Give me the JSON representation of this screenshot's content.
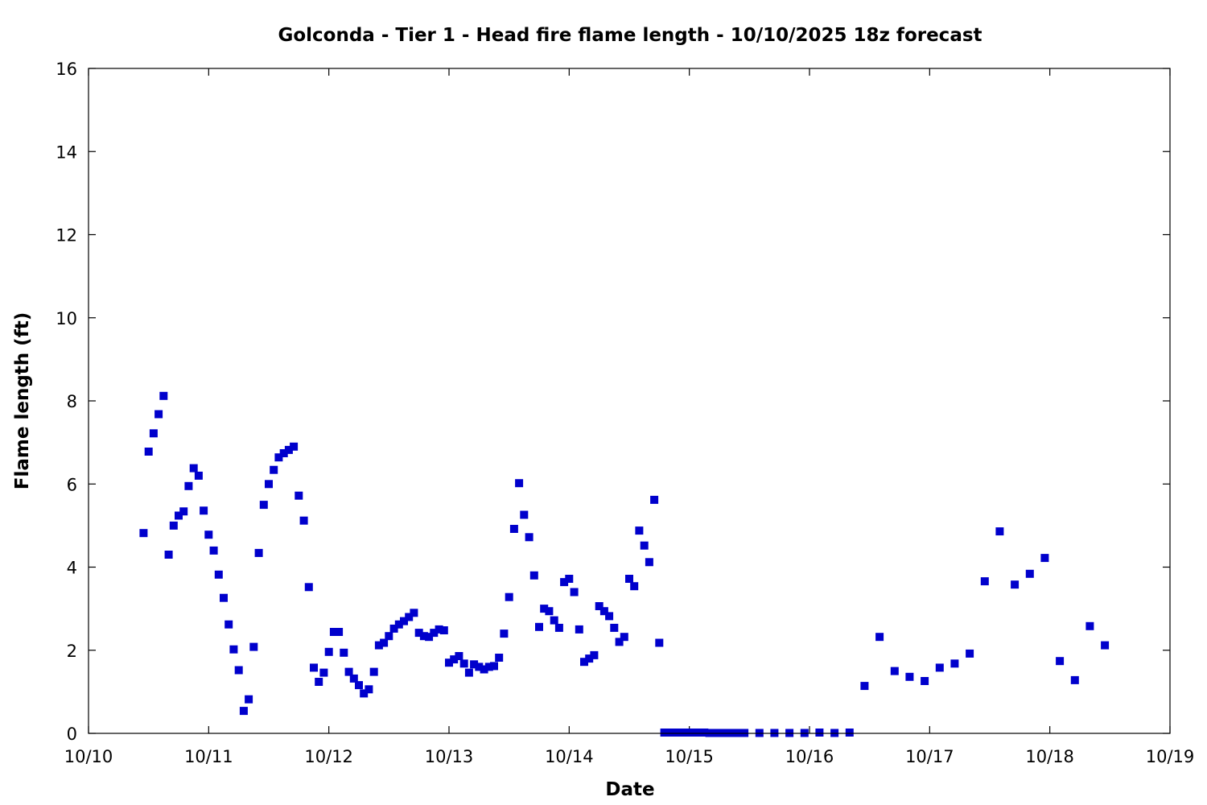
{
  "chart_data": {
    "type": "scatter",
    "title": "Golconda - Tier 1 - Head fire flame length - 10/10/2025 18z forecast",
    "xlabel": "Date",
    "ylabel": "Flame length (ft)",
    "x_ticks": [
      "10/10",
      "10/11",
      "10/12",
      "10/13",
      "10/14",
      "10/15",
      "10/16",
      "10/17",
      "10/18",
      "10/19"
    ],
    "y_ticks": [
      0,
      2,
      4,
      6,
      8,
      10,
      12,
      14,
      16
    ],
    "ylim": [
      0,
      16
    ],
    "xlim": [
      "10/10 00z",
      "10/19 00z"
    ],
    "grid": false,
    "marker": "square",
    "series_color": "#0000cc",
    "series": [
      {
        "points": [
          [
            "10/10 11z",
            4.82
          ],
          [
            "10/10 12z",
            6.78
          ],
          [
            "10/10 13z",
            7.22
          ],
          [
            "10/10 14z",
            7.68
          ],
          [
            "10/10 15z",
            8.12
          ],
          [
            "10/10 16z",
            4.3
          ],
          [
            "10/10 17z",
            5.0
          ],
          [
            "10/10 18z",
            5.24
          ],
          [
            "10/10 19z",
            5.34
          ],
          [
            "10/10 20z",
            5.95
          ],
          [
            "10/10 21z",
            6.38
          ],
          [
            "10/10 22z",
            6.2
          ],
          [
            "10/10 23z",
            5.36
          ],
          [
            "10/11 00z",
            4.78
          ],
          [
            "10/11 01z",
            4.4
          ],
          [
            "10/11 02z",
            3.82
          ],
          [
            "10/11 03z",
            3.26
          ],
          [
            "10/11 04z",
            2.62
          ],
          [
            "10/11 05z",
            2.02
          ],
          [
            "10/11 06z",
            1.52
          ],
          [
            "10/11 07z",
            0.54
          ],
          [
            "10/11 08z",
            0.82
          ],
          [
            "10/11 09z",
            2.08
          ],
          [
            "10/11 10z",
            4.34
          ],
          [
            "10/11 11z",
            5.5
          ],
          [
            "10/11 12z",
            6.0
          ],
          [
            "10/11 13z",
            6.34
          ],
          [
            "10/11 14z",
            6.64
          ],
          [
            "10/11 15z",
            6.74
          ],
          [
            "10/11 16z",
            6.82
          ],
          [
            "10/11 17z",
            6.9
          ],
          [
            "10/11 18z",
            5.72
          ],
          [
            "10/11 19z",
            5.12
          ],
          [
            "10/11 20z",
            3.52
          ],
          [
            "10/11 21z",
            1.58
          ],
          [
            "10/11 22z",
            1.24
          ],
          [
            "10/11 23z",
            1.46
          ],
          [
            "10/12 00z",
            1.96
          ],
          [
            "10/12 01z",
            2.44
          ],
          [
            "10/12 02z",
            2.44
          ],
          [
            "10/12 03z",
            1.94
          ],
          [
            "10/12 04z",
            1.48
          ],
          [
            "10/12 05z",
            1.32
          ],
          [
            "10/12 06z",
            1.16
          ],
          [
            "10/12 07z",
            0.96
          ],
          [
            "10/12 08z",
            1.06
          ],
          [
            "10/12 09z",
            1.48
          ],
          [
            "10/12 10z",
            2.12
          ],
          [
            "10/12 11z",
            2.18
          ],
          [
            "10/12 12z",
            2.34
          ],
          [
            "10/12 13z",
            2.52
          ],
          [
            "10/12 14z",
            2.62
          ],
          [
            "10/12 15z",
            2.7
          ],
          [
            "10/12 16z",
            2.8
          ],
          [
            "10/12 17z",
            2.9
          ],
          [
            "10/12 18z",
            2.42
          ],
          [
            "10/12 19z",
            2.34
          ],
          [
            "10/12 20z",
            2.32
          ],
          [
            "10/12 21z",
            2.42
          ],
          [
            "10/12 22z",
            2.5
          ],
          [
            "10/12 23z",
            2.48
          ],
          [
            "10/13 00z",
            1.7
          ],
          [
            "10/13 01z",
            1.78
          ],
          [
            "10/13 02z",
            1.86
          ],
          [
            "10/13 03z",
            1.68
          ],
          [
            "10/13 04z",
            1.46
          ],
          [
            "10/13 05z",
            1.66
          ],
          [
            "10/13 06z",
            1.6
          ],
          [
            "10/13 07z",
            1.54
          ],
          [
            "10/13 08z",
            1.6
          ],
          [
            "10/13 09z",
            1.62
          ],
          [
            "10/13 10z",
            1.82
          ],
          [
            "10/13 11z",
            2.4
          ],
          [
            "10/13 12z",
            3.28
          ],
          [
            "10/13 13z",
            4.92
          ],
          [
            "10/13 14z",
            6.02
          ],
          [
            "10/13 15z",
            5.26
          ],
          [
            "10/13 16z",
            4.72
          ],
          [
            "10/13 17z",
            3.8
          ],
          [
            "10/13 18z",
            2.56
          ],
          [
            "10/13 19z",
            3.0
          ],
          [
            "10/13 20z",
            2.94
          ],
          [
            "10/13 21z",
            2.72
          ],
          [
            "10/13 22z",
            2.54
          ],
          [
            "10/13 23z",
            3.64
          ],
          [
            "10/14 00z",
            3.72
          ],
          [
            "10/14 01z",
            3.4
          ],
          [
            "10/14 02z",
            2.5
          ],
          [
            "10/14 03z",
            1.72
          ],
          [
            "10/14 04z",
            1.8
          ],
          [
            "10/14 05z",
            1.88
          ],
          [
            "10/14 06z",
            3.06
          ],
          [
            "10/14 07z",
            2.94
          ],
          [
            "10/14 08z",
            2.82
          ],
          [
            "10/14 09z",
            2.54
          ],
          [
            "10/14 10z",
            2.2
          ],
          [
            "10/14 11z",
            2.32
          ],
          [
            "10/14 12z",
            3.72
          ],
          [
            "10/14 13z",
            3.54
          ],
          [
            "10/14 14z",
            4.88
          ],
          [
            "10/14 15z",
            4.52
          ],
          [
            "10/14 16z",
            4.12
          ],
          [
            "10/14 17z",
            5.62
          ],
          [
            "10/14 18z",
            2.18
          ],
          [
            "10/14 19z",
            0.02
          ],
          [
            "10/14 20z",
            0.02
          ],
          [
            "10/14 21z",
            0.02
          ],
          [
            "10/14 22z",
            0.02
          ],
          [
            "10/14 23z",
            0.02
          ],
          [
            "10/15 00z",
            0.02
          ],
          [
            "10/15 01z",
            0.02
          ],
          [
            "10/15 02z",
            0.02
          ],
          [
            "10/15 03z",
            0.02
          ],
          [
            "10/15 04z",
            0.01
          ],
          [
            "10/15 05z",
            0.01
          ],
          [
            "10/15 06z",
            0.01
          ],
          [
            "10/15 07z",
            0.01
          ],
          [
            "10/15 08z",
            0.01
          ],
          [
            "10/15 09z",
            0.01
          ],
          [
            "10/15 10z",
            0.01
          ],
          [
            "10/15 11z",
            0.01
          ],
          [
            "10/15 14z",
            0.01
          ],
          [
            "10/15 17z",
            0.01
          ],
          [
            "10/15 20z",
            0.01
          ],
          [
            "10/15 23z",
            0.01
          ],
          [
            "10/16 02z",
            0.02
          ],
          [
            "10/16 05z",
            0.01
          ],
          [
            "10/16 08z",
            0.02
          ],
          [
            "10/16 11z",
            1.14
          ],
          [
            "10/16 14z",
            2.32
          ],
          [
            "10/16 17z",
            1.5
          ],
          [
            "10/16 20z",
            1.36
          ],
          [
            "10/16 23z",
            1.26
          ],
          [
            "10/17 02z",
            1.58
          ],
          [
            "10/17 05z",
            1.68
          ],
          [
            "10/17 08z",
            1.92
          ],
          [
            "10/17 11z",
            3.66
          ],
          [
            "10/17 14z",
            4.86
          ],
          [
            "10/17 17z",
            3.58
          ],
          [
            "10/17 20z",
            3.84
          ],
          [
            "10/17 23z",
            4.22
          ],
          [
            "10/18 02z",
            1.74
          ],
          [
            "10/18 05z",
            1.28
          ],
          [
            "10/18 08z",
            2.58
          ],
          [
            "10/18 11z",
            2.12
          ]
        ]
      }
    ]
  }
}
